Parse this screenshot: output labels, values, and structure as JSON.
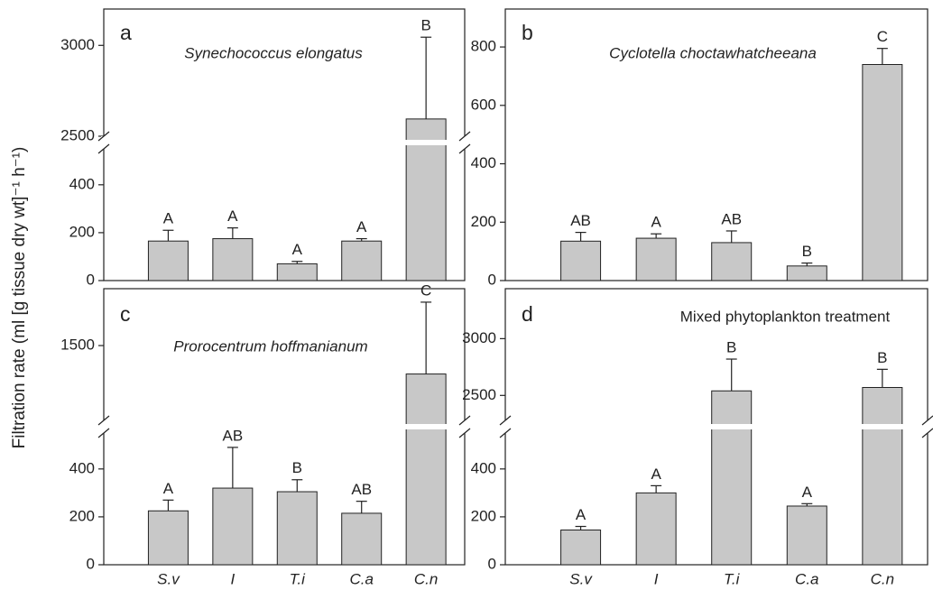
{
  "y_label": "Filtration rate (ml [g tissue dry wt]⁻¹ h⁻¹)",
  "chart_data": [
    {
      "type": "bar",
      "label": "a",
      "title": "Synechococcus elongatus",
      "title_italic": true,
      "color": "#c8c8c8",
      "values": [
        165,
        175,
        70,
        165,
        2595
      ],
      "errors": [
        45,
        45,
        10,
        10,
        450
      ],
      "annotations": [
        "A",
        "A",
        "A",
        "A",
        "B"
      ],
      "ylim_lower": [
        0,
        550
      ],
      "ylim_upper": [
        2500,
        3200
      ],
      "yticks": [
        0,
        200,
        400,
        2500,
        3000
      ]
    },
    {
      "type": "bar",
      "label": "b",
      "title": "Cyclotella choctawhatcheeana",
      "title_italic": true,
      "color": "#c8c8c8",
      "values": [
        135,
        145,
        130,
        50,
        740
      ],
      "errors": [
        30,
        15,
        40,
        10,
        55
      ],
      "annotations": [
        "AB",
        "A",
        "AB",
        "B",
        "C"
      ],
      "ylim": [
        0,
        930
      ],
      "yticks": [
        0,
        200,
        400,
        600,
        800
      ]
    },
    {
      "type": "bar",
      "label": "c",
      "title": "Prorocentrum hoffmanianum",
      "title_italic": true,
      "color": "#c8c8c8",
      "categories": [
        "S.v",
        "I",
        "T.i",
        "C.a",
        "C.n"
      ],
      "values": [
        225,
        320,
        305,
        215,
        1310
      ],
      "errors": [
        45,
        170,
        50,
        50,
        480
      ],
      "annotations": [
        "A",
        "AB",
        "B",
        "AB",
        "C"
      ],
      "ylim_lower": [
        0,
        550
      ],
      "ylim_upper": [
        1000,
        1880
      ],
      "yticks": [
        0,
        200,
        400,
        1500
      ]
    },
    {
      "type": "bar",
      "label": "d",
      "title": "Mixed phytoplankton treatment",
      "title_italic": false,
      "color": "#c8c8c8",
      "categories": [
        "S.v",
        "I",
        "T.i",
        "C.a",
        "C.n"
      ],
      "values": [
        145,
        300,
        2540,
        245,
        2570
      ],
      "errors": [
        15,
        30,
        280,
        10,
        160
      ],
      "annotations": [
        "A",
        "A",
        "B",
        "A",
        "B"
      ],
      "ylim_lower": [
        0,
        550
      ],
      "ylim_upper": [
        2280,
        3440
      ],
      "yticks": [
        0,
        200,
        400,
        2500,
        3000
      ]
    }
  ]
}
